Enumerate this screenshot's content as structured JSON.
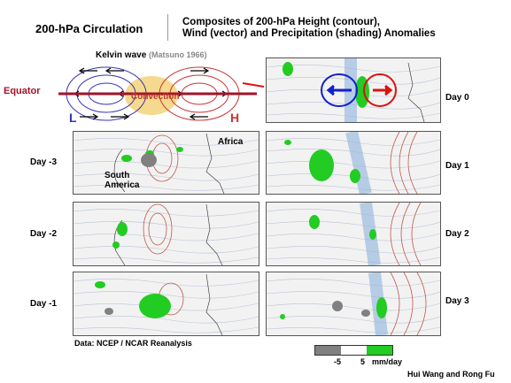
{
  "header": {
    "title": "200-hPa Circulation",
    "subtitle_line1": "Composites of 200-hPa Height (contour),",
    "subtitle_line2": "Wind (vector) and Precipitation (shading) Anomalies"
  },
  "schematic": {
    "heading": "Kelvin wave",
    "reference": "(Matsuno 1966)",
    "equator_label": "Equator",
    "convection_label": "Convection",
    "low_label": "L",
    "high_label": "H",
    "colors": {
      "equator": "#a0142a",
      "low": "#3333bb",
      "high": "#cc3333",
      "convection": "#f3d27a"
    }
  },
  "panels_left": [
    {
      "day": "Day -3",
      "labels": [
        "Africa",
        "South",
        "America"
      ]
    },
    {
      "day": "Day -2"
    },
    {
      "day": "Day -1"
    }
  ],
  "panels_right": [
    {
      "day": "Day 0"
    },
    {
      "day": "Day 1"
    },
    {
      "day": "Day 2"
    },
    {
      "day": "Day 3"
    }
  ],
  "legend": {
    "neg": "-5",
    "pos": "5",
    "unit": "mm/day",
    "colors": {
      "dry": "#808080",
      "neutral": "#ffffff",
      "wet": "#22cc22"
    }
  },
  "source": "Data: NCEP / NCAR Reanalysis",
  "credit": "Hui Wang and Rong Fu"
}
